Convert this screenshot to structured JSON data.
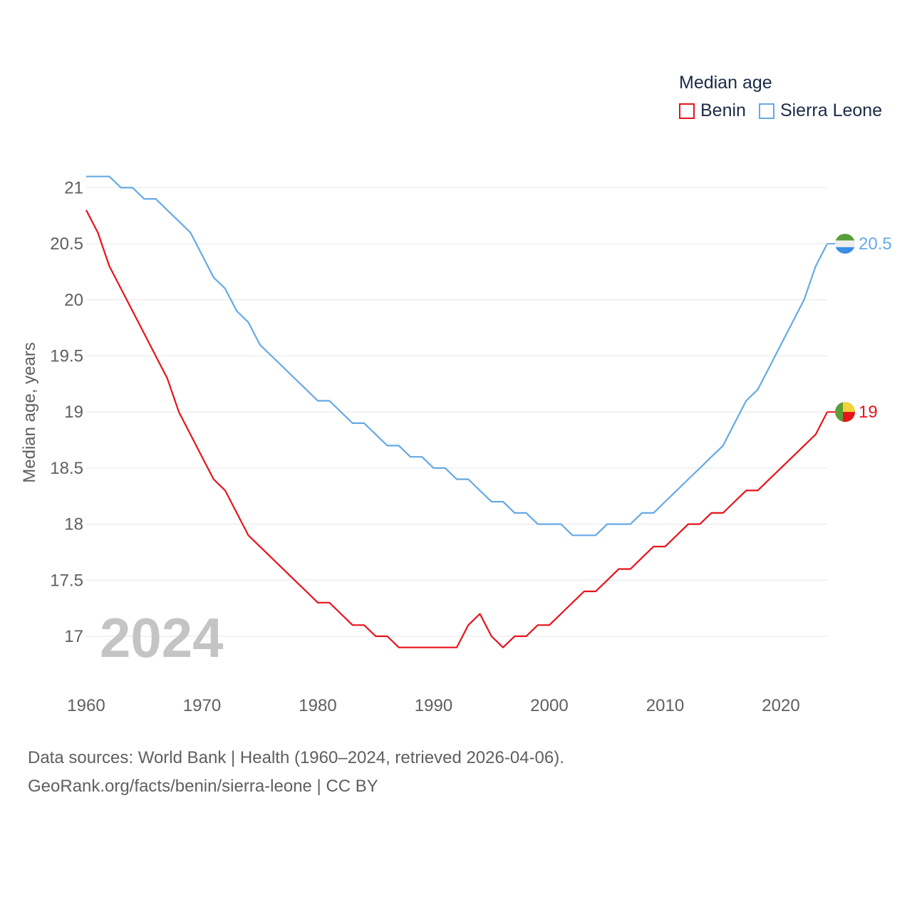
{
  "legend": {
    "title": "Median age",
    "items": [
      {
        "label": "Benin",
        "color": "#e8131b"
      },
      {
        "label": "Sierra Leone",
        "color": "#66a9e6"
      }
    ]
  },
  "current_year": "2024",
  "footer": {
    "line1": "Data sources: World Bank | Health (1960–2024, retrieved 2026-04-06).",
    "line2": "GeoRank.org/facts/benin/sierra-leone | CC BY"
  },
  "end_labels": {
    "sierra_leone": "20.5",
    "benin": "19"
  },
  "chart_data": {
    "type": "line",
    "title": "Median age",
    "xlabel": "",
    "ylabel": "Median age, years",
    "xlim": [
      1960,
      2024
    ],
    "ylim": [
      16.7,
      21.2
    ],
    "x_ticks": [
      1960,
      1970,
      1980,
      1990,
      2000,
      2010,
      2020
    ],
    "y_ticks": [
      17,
      17.5,
      18,
      18.5,
      19,
      19.5,
      20,
      20.5,
      21
    ],
    "y_tick_labels": [
      "17",
      "17.5",
      "18",
      "18.5",
      "19",
      "19.5",
      "20",
      "20.5",
      "21"
    ],
    "grid": true,
    "legend_position": "top-right",
    "x": [
      1960,
      1961,
      1962,
      1963,
      1964,
      1965,
      1966,
      1967,
      1968,
      1969,
      1970,
      1971,
      1972,
      1973,
      1974,
      1975,
      1976,
      1977,
      1978,
      1979,
      1980,
      1981,
      1982,
      1983,
      1984,
      1985,
      1986,
      1987,
      1988,
      1989,
      1990,
      1991,
      1992,
      1993,
      1994,
      1995,
      1996,
      1997,
      1998,
      1999,
      2000,
      2001,
      2002,
      2003,
      2004,
      2005,
      2006,
      2007,
      2008,
      2009,
      2010,
      2011,
      2012,
      2013,
      2014,
      2015,
      2016,
      2017,
      2018,
      2019,
      2020,
      2021,
      2022,
      2023,
      2024
    ],
    "series": [
      {
        "name": "Benin",
        "color": "#e8131b",
        "values": [
          20.8,
          20.6,
          20.3,
          20.1,
          19.9,
          19.7,
          19.5,
          19.3,
          19.0,
          18.8,
          18.6,
          18.4,
          18.3,
          18.1,
          17.9,
          17.8,
          17.7,
          17.6,
          17.5,
          17.4,
          17.3,
          17.3,
          17.2,
          17.1,
          17.1,
          17.0,
          17.0,
          16.9,
          16.9,
          16.9,
          16.9,
          16.9,
          16.9,
          17.1,
          17.2,
          17.0,
          16.9,
          17.0,
          17.0,
          17.1,
          17.1,
          17.2,
          17.3,
          17.4,
          17.4,
          17.5,
          17.6,
          17.6,
          17.7,
          17.8,
          17.8,
          17.9,
          18.0,
          18.0,
          18.1,
          18.1,
          18.2,
          18.3,
          18.3,
          18.4,
          18.5,
          18.6,
          18.7,
          18.8,
          19.0
        ]
      },
      {
        "name": "Sierra Leone",
        "color": "#66a9e6",
        "values": [
          21.1,
          21.1,
          21.1,
          21.0,
          21.0,
          20.9,
          20.9,
          20.8,
          20.7,
          20.6,
          20.4,
          20.2,
          20.1,
          19.9,
          19.8,
          19.6,
          19.5,
          19.4,
          19.3,
          19.2,
          19.1,
          19.1,
          19.0,
          18.9,
          18.9,
          18.8,
          18.7,
          18.7,
          18.6,
          18.6,
          18.5,
          18.5,
          18.4,
          18.4,
          18.3,
          18.2,
          18.2,
          18.1,
          18.1,
          18.0,
          18.0,
          18.0,
          17.9,
          17.9,
          17.9,
          18.0,
          18.0,
          18.0,
          18.1,
          18.1,
          18.2,
          18.3,
          18.4,
          18.5,
          18.6,
          18.7,
          18.9,
          19.1,
          19.2,
          19.4,
          19.6,
          19.8,
          20.0,
          20.3,
          20.5
        ]
      }
    ]
  }
}
